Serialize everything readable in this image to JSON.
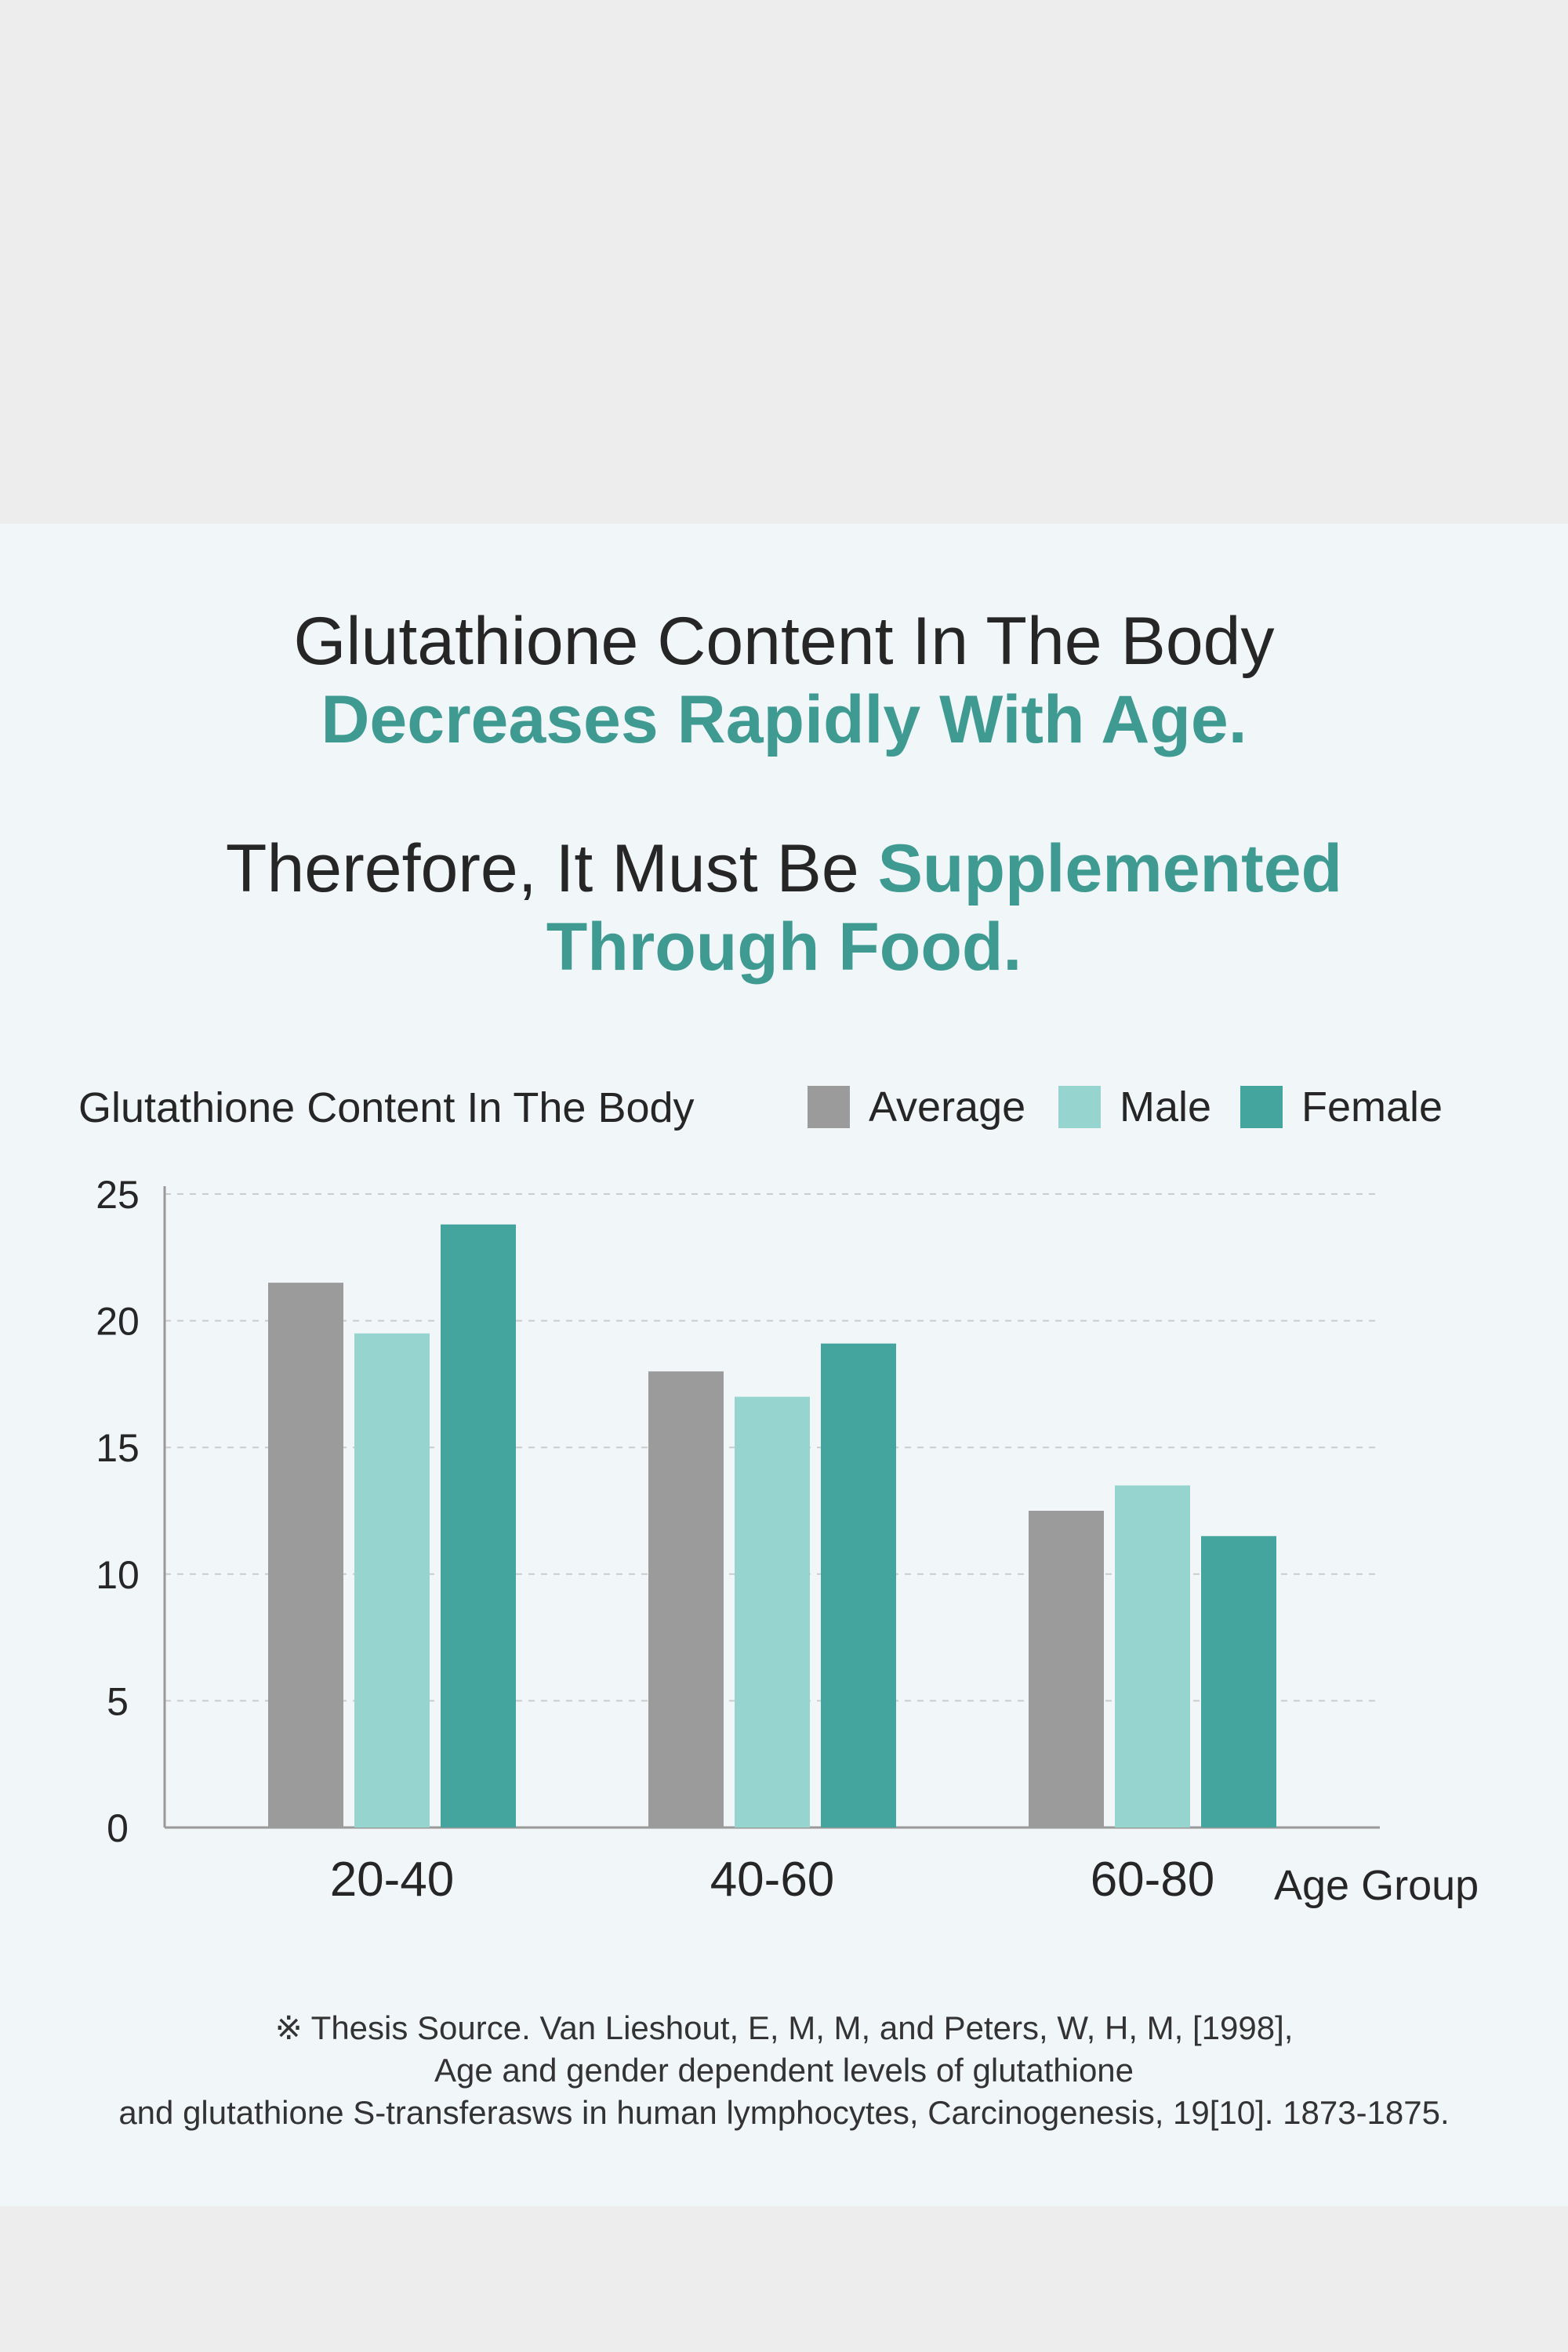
{
  "headline": {
    "line1": "Glutathione Content In The Body",
    "line2": "Decreases Rapidly With Age.",
    "line3_plain": "Therefore, It Must Be ",
    "line3_accent": "Supplemented",
    "line4": "Through Food."
  },
  "colors": {
    "average": "#9b9b9b",
    "male": "#96d5cf",
    "female": "#43a59e",
    "accent": "#3f9a92",
    "grid": "#cccccc"
  },
  "chart_data": {
    "type": "bar",
    "title": "Glutathione Content In The Body",
    "xlabel": "Age Group",
    "ylabel": "",
    "ylim": [
      0,
      25
    ],
    "yticks": [
      0,
      5,
      10,
      15,
      20,
      25
    ],
    "grid": true,
    "legend_position": "top-right",
    "categories": [
      "20-40",
      "40-60",
      "60-80"
    ],
    "series": [
      {
        "name": "Average",
        "values": [
          21.5,
          18.0,
          12.5
        ]
      },
      {
        "name": "Male",
        "values": [
          19.5,
          17.0,
          13.5
        ]
      },
      {
        "name": "Female",
        "values": [
          23.8,
          19.1,
          11.5
        ]
      }
    ]
  },
  "source": {
    "line1": "※ Thesis Source. Van Lieshout, E, M, M, and Peters, W, H, M, [1998],",
    "line2": "Age and gender dependent levels of glutathione",
    "line3": "and glutathione S-transferasws in human lymphocytes, Carcinogenesis, 19[10]. 1873-1875."
  }
}
